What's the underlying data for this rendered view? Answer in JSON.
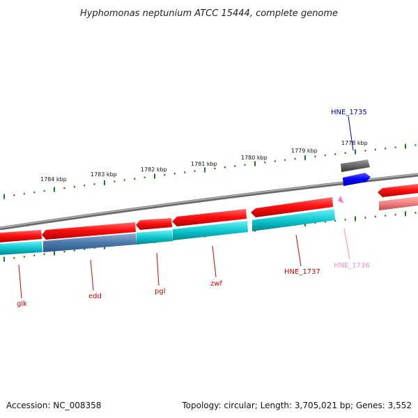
{
  "title": "Hyphomonas neptunium ATCC 15444, complete genome",
  "footer": {
    "accession": "Accession: NC_008358",
    "summary": "Topology: circular; Length: 3,705,021 bp; Genes: 3,552"
  },
  "tick_labels": [
    "1778 kbp",
    "1779 kbp",
    "1780 kbp",
    "1781 kbp",
    "1782 kbp",
    "1783 kbp",
    "1784 kbp"
  ],
  "genes": {
    "glk": "glk",
    "edd": "edd",
    "pgl": "pgl",
    "zwf": "zwf",
    "hne_1737": "HNE_1737",
    "hne_1736": "HNE_1736",
    "hne_1735": "HNE_1735"
  },
  "colors": {
    "forward_cds": "#ff0000",
    "reverse_feature": "#00c8d0",
    "backbone": "#888888",
    "tick": "#1a7a1a",
    "label_red": "#cc0000",
    "label_pink": "#ff88cc",
    "label_blue": "#0000cc",
    "blue_feature": "#0000ff",
    "grey_feature": "#555555"
  }
}
